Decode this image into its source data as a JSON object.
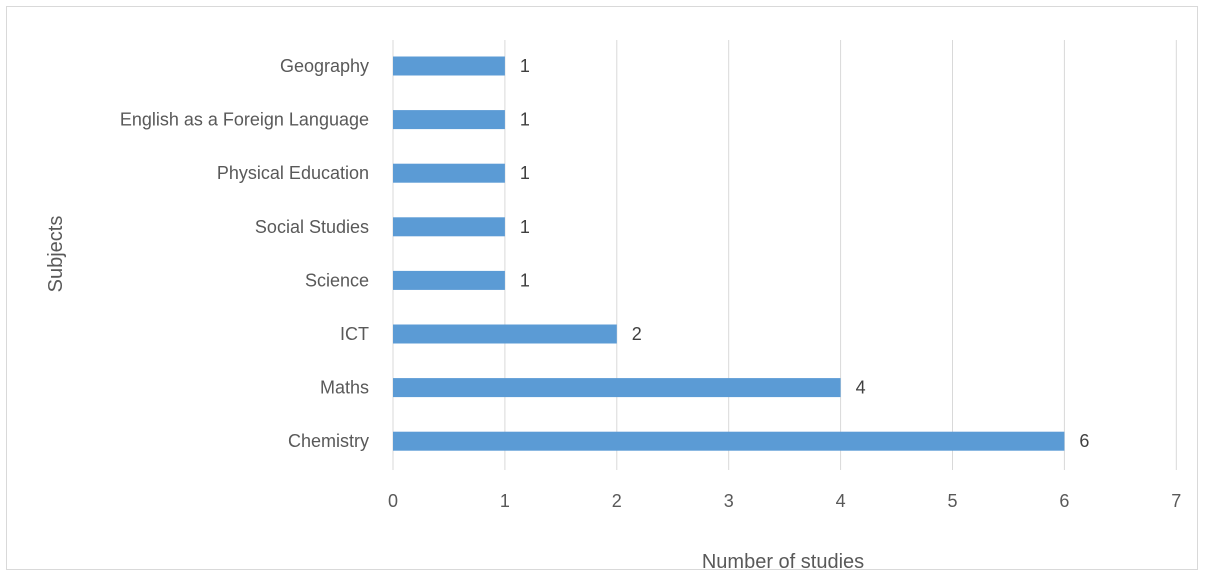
{
  "chart_data": {
    "type": "bar",
    "orientation": "horizontal",
    "categories": [
      "Geography",
      "English as a Foreign Language",
      "Physical Education",
      "Social Studies",
      "Science",
      "ICT",
      "Maths",
      "Chemistry"
    ],
    "values": [
      1,
      1,
      1,
      1,
      1,
      2,
      4,
      6
    ],
    "data_labels": [
      "1",
      "1",
      "1",
      "1",
      "1",
      "2",
      "4",
      "6"
    ],
    "xlabel": "Number of studies",
    "ylabel": "Subjects",
    "xlim": [
      0,
      7
    ],
    "x_ticks": [
      "0",
      "1",
      "2",
      "3",
      "4",
      "5",
      "6",
      "7"
    ],
    "grid": "vertical",
    "legend": "none",
    "bar_color": "#5b9bd5"
  }
}
